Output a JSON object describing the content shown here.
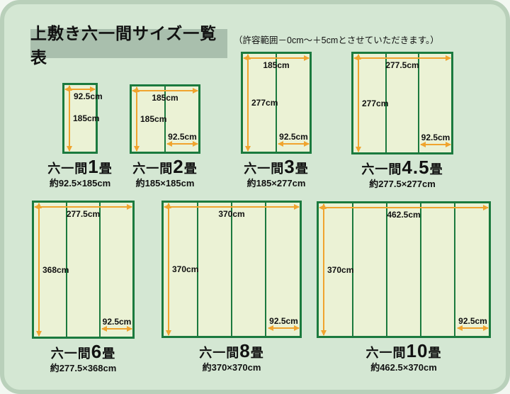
{
  "page": {
    "title": "上敷き六一間サイズ一覧表",
    "note": "（許容範囲－0cm～＋5cmとさせていただきます。）"
  },
  "colors": {
    "card_background": "#d4e7d3",
    "card_rim": "#b9d0ba",
    "title_background": "#a9bfad",
    "mat_fill": "#ebf2d5",
    "mat_border_green": "#1b7a3e",
    "arrow_orange": "#f0a42e",
    "text": "#111111"
  },
  "diagrams": [
    {
      "series": "六一間",
      "count": "1",
      "unit": "畳",
      "approx": "約92.5×185cm",
      "width_label": "92.5cm",
      "height_label": "185cm",
      "unit_label": null,
      "mats": 1
    },
    {
      "series": "六一間",
      "count": "2",
      "unit": "畳",
      "approx": "約185×185cm",
      "width_label": "185cm",
      "height_label": "185cm",
      "unit_label": "92.5cm",
      "mats": 2
    },
    {
      "series": "六一間",
      "count": "3",
      "unit": "畳",
      "approx": "約185×277cm",
      "width_label": "185cm",
      "height_label": "277cm",
      "unit_label": "92.5cm",
      "mats": 2
    },
    {
      "series": "六一間",
      "count": "4.5",
      "unit": "畳",
      "approx": "約277.5×277cm",
      "width_label": "277.5cm",
      "height_label": "277cm",
      "unit_label": "92.5cm",
      "mats": 3
    },
    {
      "series": "六一間",
      "count": "6",
      "unit": "畳",
      "approx": "約277.5×368cm",
      "width_label": "277.5cm",
      "height_label": "368cm",
      "unit_label": "92.5cm",
      "mats": 3
    },
    {
      "series": "六一間",
      "count": "8",
      "unit": "畳",
      "approx": "約370×370cm",
      "width_label": "370cm",
      "height_label": "370cm",
      "unit_label": "92.5cm",
      "mats": 4
    },
    {
      "series": "六一間",
      "count": "10",
      "unit": "畳",
      "approx": "約462.5×370cm",
      "width_label": "462.5cm",
      "height_label": "370cm",
      "unit_label": "92.5cm",
      "mats": 5
    }
  ]
}
